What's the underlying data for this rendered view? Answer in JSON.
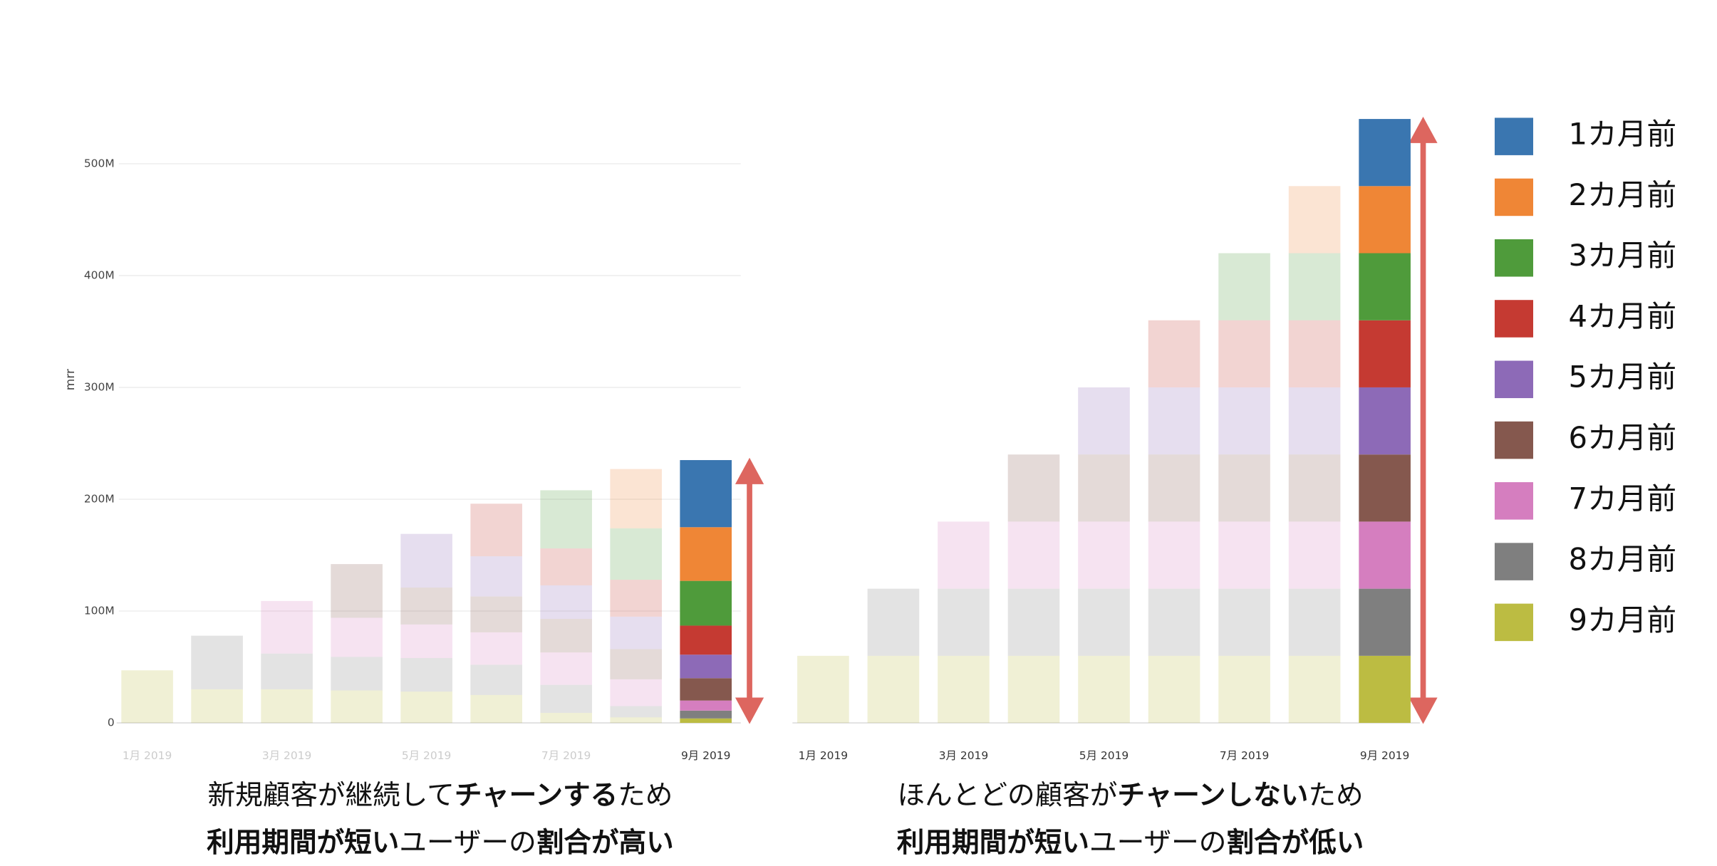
{
  "chart_data": [
    {
      "type": "stacked-bar",
      "y_label": "mrr",
      "categories": [
        "1月 2019",
        null,
        "3月 2019",
        null,
        "5月 2019",
        null,
        "7月 2019",
        null,
        "9月 2019"
      ],
      "ylim": [
        0,
        545
      ],
      "yticks": [
        0,
        {
          "value": 100,
          "label": "100M"
        },
        {
          "value": 200,
          "label": "200M"
        },
        {
          "value": 300,
          "label": "300M"
        },
        {
          "value": 400,
          "label": "400M"
        },
        {
          "value": 500,
          "label": "500M"
        }
      ],
      "grid": true,
      "series": [
        {
          "color": "#3a76b0",
          "values": [
            null,
            null,
            null,
            null,
            null,
            null,
            null,
            null,
            60
          ]
        },
        {
          "color": "#ef8636",
          "values": [
            null,
            null,
            null,
            null,
            null,
            null,
            null,
            53,
            48
          ]
        },
        {
          "color": "#4f9b3b",
          "values": [
            null,
            null,
            null,
            null,
            null,
            null,
            52,
            46,
            40
          ]
        },
        {
          "color": "#c53a32",
          "values": [
            null,
            null,
            null,
            null,
            null,
            47,
            33,
            33,
            26
          ]
        },
        {
          "color": "#8d6ab7",
          "values": [
            null,
            null,
            null,
            null,
            48,
            36,
            30,
            29,
            21
          ]
        },
        {
          "color": "#85584e",
          "values": [
            null,
            null,
            null,
            48,
            33,
            32,
            30,
            27,
            20
          ]
        },
        {
          "color": "#d57ebf",
          "values": [
            null,
            null,
            47,
            35,
            30,
            29,
            29,
            24,
            9
          ]
        },
        {
          "color": "#7f7f7f",
          "values": [
            null,
            48,
            32,
            30,
            30,
            27,
            25,
            10,
            7
          ]
        },
        {
          "color": "#bcbc42",
          "values": [
            47,
            30,
            30,
            29,
            28,
            25,
            9,
            5,
            4
          ]
        }
      ],
      "caption": [
        [
          {
            "text": "新規顧客が継続して"
          },
          {
            "text": "チャーンする",
            "bold": true
          },
          {
            "text": "ため"
          }
        ],
        [
          {
            "text": "利用期間が短い",
            "bold": true
          },
          {
            "text": "ユーザーの"
          },
          {
            "text": "割合が高い",
            "bold": true
          }
        ]
      ]
    },
    {
      "type": "stacked-bar",
      "categories": [
        "1月 2019",
        null,
        "3月 2019",
        null,
        "5月 2019",
        null,
        "7月 2019",
        null,
        "9月 2019"
      ],
      "ylim": [
        0,
        545
      ],
      "series": [
        {
          "name": "1カ月前",
          "color": "#3a76b0",
          "values": [
            null,
            null,
            null,
            null,
            null,
            null,
            null,
            null,
            60
          ]
        },
        {
          "name": "2カ月前",
          "color": "#ef8636",
          "values": [
            null,
            null,
            null,
            null,
            null,
            null,
            null,
            60,
            60
          ]
        },
        {
          "name": "3カ月前",
          "color": "#4f9b3b",
          "values": [
            null,
            null,
            null,
            null,
            null,
            null,
            60,
            60,
            60
          ]
        },
        {
          "name": "4カ月前",
          "color": "#c53a32",
          "values": [
            null,
            null,
            null,
            null,
            null,
            60,
            60,
            60,
            60
          ]
        },
        {
          "name": "5カ月前",
          "color": "#8d6ab7",
          "values": [
            null,
            null,
            null,
            null,
            60,
            60,
            60,
            60,
            60
          ]
        },
        {
          "name": "6カ月前",
          "color": "#85584e",
          "values": [
            null,
            null,
            null,
            60,
            60,
            60,
            60,
            60,
            60
          ]
        },
        {
          "name": "7カ月前",
          "color": "#d57ebf",
          "values": [
            null,
            null,
            60,
            60,
            60,
            60,
            60,
            60,
            60
          ]
        },
        {
          "name": "8カ月前",
          "color": "#7f7f7f",
          "values": [
            null,
            60,
            60,
            60,
            60,
            60,
            60,
            60,
            60
          ]
        },
        {
          "name": "9カ月前",
          "color": "#bcbc42",
          "values": [
            60,
            60,
            60,
            60,
            60,
            60,
            60,
            60,
            60
          ]
        }
      ],
      "caption": [
        [
          {
            "text": "ほんとどの顧客が"
          },
          {
            "text": "チャーンしない",
            "bold": true
          },
          {
            "text": "ため"
          }
        ],
        [
          {
            "text": "利用期間が短い",
            "bold": true
          },
          {
            "text": "ユーザーの"
          },
          {
            "text": "割合が低い",
            "bold": true
          }
        ]
      ]
    }
  ]
}
